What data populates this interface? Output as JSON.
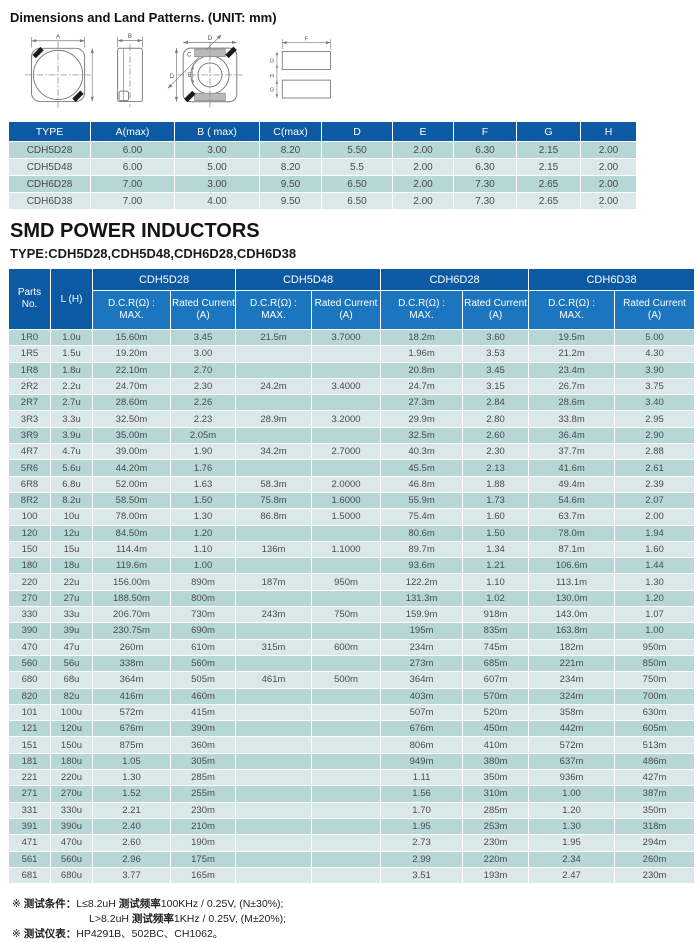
{
  "header": {
    "dim_title": "Dimensions and Land Patterns. (UNIT: mm)",
    "section_title": "SMD POWER INDUCTORS",
    "type_line": "TYPE:CDH5D28,CDH5D48,CDH6D28,CDH6D38"
  },
  "diagram_labels": {
    "a": "A",
    "b": "B",
    "c": "C",
    "d_top": "D",
    "d_left": "D",
    "e": "E",
    "f": "F",
    "g_top": "G",
    "h": "H",
    "g_bottom": "G"
  },
  "dimensions_table": {
    "headers": [
      "TYPE",
      "A(max)",
      "B ( max)",
      "C(max)",
      "D",
      "E",
      "F",
      "G",
      "H"
    ],
    "rows": [
      [
        "CDH5D28",
        "6.00",
        "3.00",
        "8.20",
        "5.50",
        "2.00",
        "6.30",
        "2.15",
        "2.00"
      ],
      [
        "CDH5D48",
        "6.00",
        "5.00",
        "8.20",
        "5.5",
        "2.00",
        "6.30",
        "2.15",
        "2.00"
      ],
      [
        "CDH6D28",
        "7.00",
        "3.00",
        "9.50",
        "6.50",
        "2.00",
        "7.30",
        "2.65",
        "2.00"
      ],
      [
        "CDH6D38",
        "7.00",
        "4.00",
        "9.50",
        "6.50",
        "2.00",
        "7.30",
        "2.65",
        "2.00"
      ]
    ]
  },
  "inductor_table": {
    "parts_line1": "Parts",
    "parts_line2": "No.",
    "l_header": "L (H)",
    "types": [
      "CDH5D28",
      "CDH5D48",
      "CDH6D28",
      "CDH6D38"
    ],
    "dcr_line1": "D.C.R(Ω) :",
    "dcr_line2": "MAX.",
    "rated_line1": "Rated Current",
    "rated_line2": "(A)",
    "rows": [
      [
        "1R0",
        "1.0u",
        "15.60m",
        "3.45",
        "21.5m",
        "3.7000",
        "18.2m",
        "3.60",
        "19.5m",
        "5.00"
      ],
      [
        "1R5",
        "1.5u",
        "19.20m",
        "3.00",
        "",
        "",
        "1.96m",
        "3.53",
        "21.2m",
        "4.30"
      ],
      [
        "1R8",
        "1.8u",
        "22.10m",
        "2.70",
        "",
        "",
        "20.8m",
        "3.45",
        "23.4m",
        "3.90"
      ],
      [
        "2R2",
        "2.2u",
        "24.70m",
        "2.30",
        "24.2m",
        "3.4000",
        "24.7m",
        "3.15",
        "26.7m",
        "3.75"
      ],
      [
        "2R7",
        "2.7u",
        "28.60m",
        "2.26",
        "",
        "",
        "27.3m",
        "2.84",
        "28.6m",
        "3.40"
      ],
      [
        "3R3",
        "3.3u",
        "32.50m",
        "2.23",
        "28.9m",
        "3.2000",
        "29.9m",
        "2.80",
        "33.8m",
        "2.95"
      ],
      [
        "3R9",
        "3.9u",
        "35.00m",
        "2.05m",
        "",
        "",
        "32.5m",
        "2.60",
        "36.4m",
        "2.90"
      ],
      [
        "4R7",
        "4.7u",
        "39.00m",
        "1.90",
        "34.2m",
        "2.7000",
        "40.3m",
        "2.30",
        "37.7m",
        "2.88"
      ],
      [
        "5R6",
        "5.6u",
        "44.20m",
        "1.76",
        "",
        "",
        "45.5m",
        "2.13",
        "41.6m",
        "2.61"
      ],
      [
        "6R8",
        "6.8u",
        "52.00m",
        "1.63",
        "58.3m",
        "2.0000",
        "46.8m",
        "1.88",
        "49.4m",
        "2.39"
      ],
      [
        "8R2",
        "8.2u",
        "58.50m",
        "1.50",
        "75.8m",
        "1.6000",
        "55.9m",
        "1.73",
        "54.6m",
        "2.07"
      ],
      [
        "100",
        "10u",
        "78.00m",
        "1.30",
        "86.8m",
        "1.5000",
        "75.4m",
        "1.60",
        "63.7m",
        "2.00"
      ],
      [
        "120",
        "12u",
        "84.50m",
        "1.20",
        "",
        "",
        "80.6m",
        "1.50",
        "78.0m",
        "1.94"
      ],
      [
        "150",
        "15u",
        "114.4m",
        "1.10",
        "136m",
        "1.1000",
        "89.7m",
        "1.34",
        "87.1m",
        "1.60"
      ],
      [
        "180",
        "18u",
        "119.6m",
        "1.00",
        "",
        "",
        "93.6m",
        "1.21",
        "106.6m",
        "1.44"
      ],
      [
        "220",
        "22u",
        "156.00m",
        "890m",
        "187m",
        "950m",
        "122.2m",
        "1.10",
        "113.1m",
        "1.30"
      ],
      [
        "270",
        "27u",
        "188.50m",
        "800m",
        "",
        "",
        "131.3m",
        "1.02",
        "130.0m",
        "1.20"
      ],
      [
        "330",
        "33u",
        "206.70m",
        "730m",
        "243m",
        "750m",
        "159.9m",
        "918m",
        "143.0m",
        "1.07"
      ],
      [
        "390",
        "39u",
        "230.75m",
        "690m",
        "",
        "",
        "195m",
        "835m",
        "163.8m",
        "1.00"
      ],
      [
        "470",
        "47u",
        "260m",
        "610m",
        "315m",
        "600m",
        "234m",
        "745m",
        "182m",
        "950m"
      ],
      [
        "560",
        "56u",
        "338m",
        "560m",
        "",
        "",
        "273m",
        "685m",
        "221m",
        "850m"
      ],
      [
        "680",
        "68u",
        "364m",
        "505m",
        "461m",
        "500m",
        "364m",
        "607m",
        "234m",
        "750m"
      ],
      [
        "820",
        "82u",
        "416m",
        "460m",
        "",
        "",
        "403m",
        "570m",
        "324m",
        "700m"
      ],
      [
        "101",
        "100u",
        "572m",
        "415m",
        "",
        "",
        "507m",
        "520m",
        "358m",
        "630m"
      ],
      [
        "121",
        "120u",
        "676m",
        "390m",
        "",
        "",
        "676m",
        "450m",
        "442m",
        "605m"
      ],
      [
        "151",
        "150u",
        "875m",
        "360m",
        "",
        "",
        "806m",
        "410m",
        "572m",
        "513m"
      ],
      [
        "181",
        "180u",
        "1.05",
        "305m",
        "",
        "",
        "949m",
        "380m",
        "637m",
        "486m"
      ],
      [
        "221",
        "220u",
        "1.30",
        "285m",
        "",
        "",
        "1.11",
        "350m",
        "936m",
        "427m"
      ],
      [
        "271",
        "270u",
        "1.52",
        "255m",
        "",
        "",
        "1.56",
        "310m",
        "1.00",
        "387m"
      ],
      [
        "331",
        "330u",
        "2.21",
        "230m",
        "",
        "",
        "1.70",
        "285m",
        "1.20",
        "350m"
      ],
      [
        "391",
        "390u",
        "2.40",
        "210m",
        "",
        "",
        "1.95",
        "253m",
        "1.30",
        "318m"
      ],
      [
        "471",
        "470u",
        "2.60",
        "190m",
        "",
        "",
        "2.73",
        "230m",
        "1.95",
        "294m"
      ],
      [
        "561",
        "560u",
        "2.96",
        "175m",
        "",
        "",
        "2.99",
        "220m",
        "2.34",
        "260m"
      ],
      [
        "681",
        "680u",
        "3.77",
        "165m",
        "",
        "",
        "3.51",
        "193m",
        "2.47",
        "230m"
      ]
    ]
  },
  "notes": {
    "marker": "※",
    "cond_label": "测试条件：",
    "cond1_pre": "L≤8.2uH ",
    "cond1_bold": "测试频率",
    "cond1_post": "100KHz / 0.25V, (N±30%);",
    "cond2_pre": "L>8.2uH ",
    "cond2_bold": "测试频率",
    "cond2_post": "1KHz / 0.25V, (M±20%);",
    "inst_label": "测试仪表：",
    "inst_text": "HP4291B、502BC、CH1062。"
  },
  "colors": {
    "header_dark_blue": "#0c59a4",
    "header_light_blue": "#1c75bf",
    "row_teal": "#b6d7d6",
    "row_light": "#dbe8e9"
  }
}
